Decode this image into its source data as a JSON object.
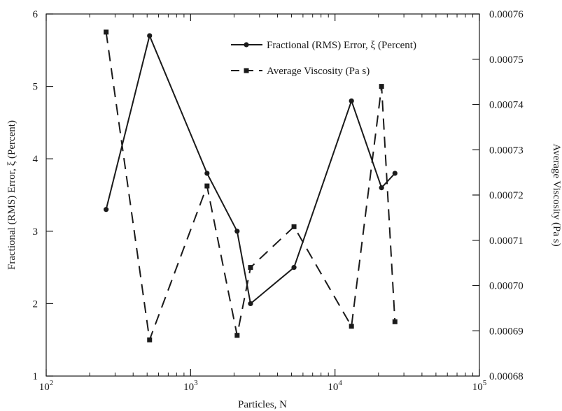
{
  "chart_data": {
    "type": "line",
    "x": [
      260,
      520,
      1300,
      2100,
      2600,
      5200,
      13000,
      21000,
      26000
    ],
    "series": [
      {
        "name": "Fractional (RMS) Error, ξ (Percent)",
        "axis": "left",
        "style": "solid",
        "marker": "circle",
        "values": [
          3.3,
          5.7,
          3.8,
          3.0,
          2.0,
          2.5,
          4.8,
          3.6,
          3.8
        ]
      },
      {
        "name": "Average Viscosity (Pa s)",
        "axis": "right",
        "style": "dashed",
        "marker": "square",
        "values": [
          0.000756,
          0.000688,
          0.000722,
          0.000689,
          0.000704,
          0.000713,
          0.000691,
          0.000744,
          0.000692
        ]
      }
    ],
    "xlabel": "Particles, N",
    "ylabel_left": "Fractional (RMS) Error, ξ (Percent)",
    "ylabel_right": "Average Viscosity (Pa s)",
    "x_scale": "log",
    "xlim": [
      100,
      100000
    ],
    "x_ticks": [
      100,
      1000,
      10000,
      100000
    ],
    "x_tick_labels": [
      {
        "base": "10",
        "exp": "2"
      },
      {
        "base": "10",
        "exp": "3"
      },
      {
        "base": "10",
        "exp": "4"
      },
      {
        "base": "10",
        "exp": "5"
      }
    ],
    "ylim_left": [
      1,
      6
    ],
    "y_ticks_left": [
      1,
      2,
      3,
      4,
      5,
      6
    ],
    "y_tick_labels_left": [
      "1",
      "2",
      "3",
      "4",
      "5",
      "6"
    ],
    "ylim_right": [
      0.00068,
      0.00076
    ],
    "y_ticks_right": [
      0.00068,
      0.00069,
      0.0007,
      0.00071,
      0.00072,
      0.00073,
      0.00074,
      0.00075,
      0.00076
    ],
    "y_tick_labels_right": [
      "0.00068",
      "0.00069",
      "0.00070",
      "0.00071",
      "0.00072",
      "0.00073",
      "0.00074",
      "0.00075",
      "0.00076"
    ],
    "grid": false,
    "legend_position": "top-right",
    "colors": {
      "line": "#1a1a1a",
      "background": "#ffffff"
    }
  }
}
